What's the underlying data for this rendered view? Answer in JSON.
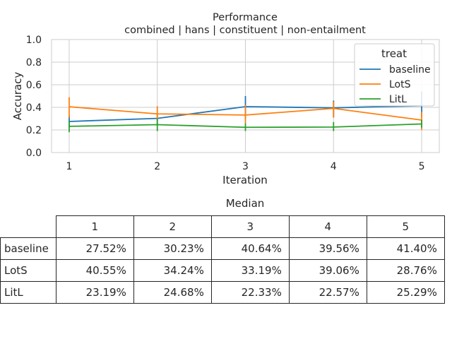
{
  "chart_data": {
    "type": "line",
    "title": "Performance",
    "subtitle": "combined | hans | constituent | non-entailment",
    "xlabel": "Iteration",
    "ylabel": "Accuracy",
    "x": [
      1,
      2,
      3,
      4,
      5
    ],
    "xlim": [
      0.8,
      5.2
    ],
    "ylim": [
      0.0,
      1.0
    ],
    "yticks": [
      "0.0",
      "0.2",
      "0.4",
      "0.6",
      "0.8",
      "1.0"
    ],
    "xticks": [
      "1",
      "2",
      "3",
      "4",
      "5"
    ],
    "grid": true,
    "legend": {
      "title": "treat",
      "placement": "upper right"
    },
    "series": [
      {
        "name": "baseline",
        "color": "#1f77b4",
        "values": [
          0.2752,
          0.3023,
          0.4064,
          0.3956,
          0.414
        ],
        "err_low": [
          0.22,
          0.24,
          0.3,
          0.31,
          0.31
        ],
        "err_high": [
          0.33,
          0.35,
          0.5,
          0.46,
          0.54
        ]
      },
      {
        "name": "LotS",
        "color": "#ff7f0e",
        "values": [
          0.4055,
          0.3424,
          0.3319,
          0.3906,
          0.2876
        ],
        "err_low": [
          0.31,
          0.29,
          0.26,
          0.31,
          0.2
        ],
        "err_high": [
          0.49,
          0.41,
          0.42,
          0.45,
          0.36
        ]
      },
      {
        "name": "LitL",
        "color": "#2ca02c",
        "values": [
          0.2319,
          0.2468,
          0.2233,
          0.2257,
          0.2529
        ],
        "err_low": [
          0.18,
          0.19,
          0.19,
          0.19,
          0.22
        ],
        "err_high": [
          0.28,
          0.3,
          0.26,
          0.27,
          0.29
        ]
      }
    ]
  },
  "table": {
    "title": "Median",
    "columns": [
      "1",
      "2",
      "3",
      "4",
      "5"
    ],
    "rows": [
      {
        "label": "baseline",
        "cells": [
          "27.52%",
          "30.23%",
          "40.64%",
          "39.56%",
          "41.40%"
        ]
      },
      {
        "label": "LotS",
        "cells": [
          "40.55%",
          "34.24%",
          "33.19%",
          "39.06%",
          "28.76%"
        ]
      },
      {
        "label": "LitL",
        "cells": [
          "23.19%",
          "24.68%",
          "22.33%",
          "22.57%",
          "25.29%"
        ]
      }
    ]
  }
}
